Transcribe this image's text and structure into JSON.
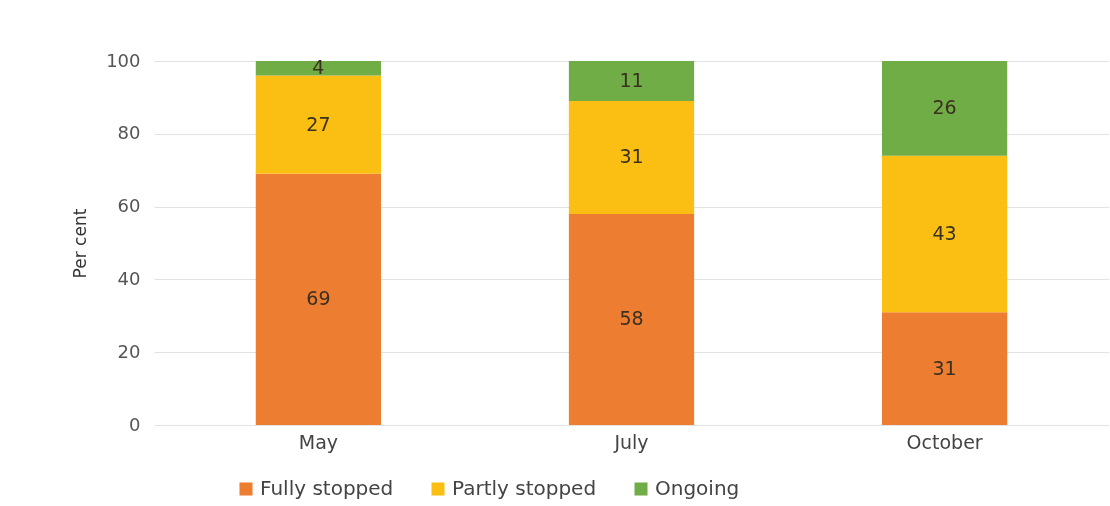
{
  "chart_data": {
    "type": "bar",
    "ylabel": "Per cent",
    "categories": [
      "May",
      "July",
      "October"
    ],
    "series": [
      {
        "name": "Fully stopped",
        "color": "#ed7d31",
        "values": [
          69,
          58,
          31
        ]
      },
      {
        "name": "Partly stopped",
        "color": "#fbbf14",
        "values": [
          27,
          31,
          43
        ]
      },
      {
        "name": "Ongoing",
        "color": "#70ad47",
        "values": [
          4,
          11,
          26
        ]
      }
    ],
    "stacked": true,
    "ylim": [
      0,
      100
    ],
    "yticks": [
      0,
      20,
      40,
      60,
      80,
      100
    ],
    "grid": "y",
    "legend": "bottom",
    "data_labels": true
  }
}
